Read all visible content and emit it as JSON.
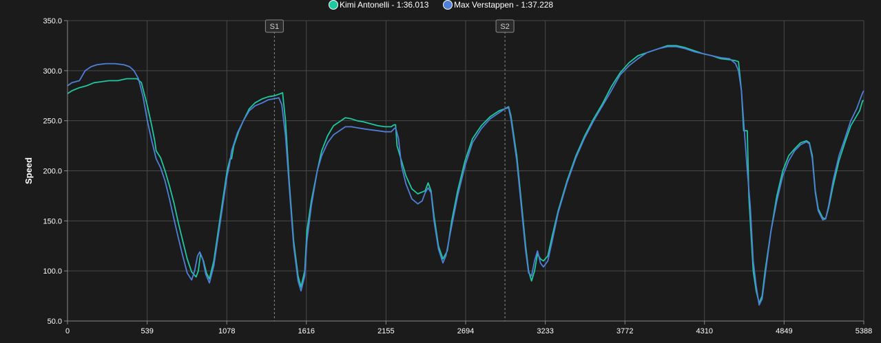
{
  "chart_data": {
    "type": "line",
    "title": "",
    "xlabel": "",
    "ylabel": "Speed",
    "xlim": [
      0,
      5388
    ],
    "ylim": [
      50,
      350
    ],
    "x_ticks": [
      "0",
      "539",
      "1078",
      "1616",
      "2155",
      "2694",
      "3233",
      "3772",
      "4310",
      "4849",
      "5388"
    ],
    "y_ticks": [
      "50.0",
      "100.0",
      "150.0",
      "200.0",
      "250.0",
      "300.0",
      "350.0"
    ],
    "grid": true,
    "legend_position": "top-center",
    "sector_markers": [
      {
        "label": "S1",
        "x": 1400
      },
      {
        "label": "S2",
        "x": 2960
      }
    ],
    "series": [
      {
        "name": "Kimi Antonelli - 1:36.013",
        "color": "#1ec9a0",
        "points": [
          [
            0,
            277
          ],
          [
            30,
            280
          ],
          [
            80,
            283
          ],
          [
            130,
            285
          ],
          [
            180,
            288
          ],
          [
            230,
            289
          ],
          [
            280,
            290
          ],
          [
            340,
            290
          ],
          [
            400,
            292
          ],
          [
            460,
            292
          ],
          [
            470,
            292
          ],
          [
            500,
            288
          ],
          [
            540,
            265
          ],
          [
            570,
            245
          ],
          [
            590,
            230
          ],
          [
            600,
            220
          ],
          [
            630,
            213
          ],
          [
            660,
            200
          ],
          [
            690,
            185
          ],
          [
            720,
            168
          ],
          [
            750,
            148
          ],
          [
            780,
            130
          ],
          [
            810,
            112
          ],
          [
            840,
            99
          ],
          [
            870,
            94
          ],
          [
            885,
            100
          ],
          [
            900,
            117
          ],
          [
            920,
            110
          ],
          [
            940,
            98
          ],
          [
            960,
            92
          ],
          [
            990,
            110
          ],
          [
            1020,
            140
          ],
          [
            1040,
            160
          ],
          [
            1060,
            180
          ],
          [
            1080,
            200
          ],
          [
            1100,
            212
          ],
          [
            1110,
            212
          ],
          [
            1125,
            225
          ],
          [
            1160,
            240
          ],
          [
            1190,
            250
          ],
          [
            1230,
            262
          ],
          [
            1270,
            268
          ],
          [
            1320,
            272
          ],
          [
            1360,
            274
          ],
          [
            1400,
            275
          ],
          [
            1440,
            277
          ],
          [
            1455,
            278
          ],
          [
            1475,
            250
          ],
          [
            1500,
            190
          ],
          [
            1530,
            130
          ],
          [
            1560,
            95
          ],
          [
            1580,
            84
          ],
          [
            1605,
            100
          ],
          [
            1620,
            140
          ],
          [
            1650,
            170
          ],
          [
            1690,
            200
          ],
          [
            1720,
            220
          ],
          [
            1760,
            235
          ],
          [
            1800,
            245
          ],
          [
            1840,
            249
          ],
          [
            1880,
            253
          ],
          [
            1920,
            252
          ],
          [
            1960,
            250
          ],
          [
            2000,
            249
          ],
          [
            2050,
            247
          ],
          [
            2100,
            245
          ],
          [
            2150,
            244
          ],
          [
            2190,
            244
          ],
          [
            2210,
            246
          ],
          [
            2220,
            246
          ],
          [
            2230,
            225
          ],
          [
            2260,
            210
          ],
          [
            2290,
            195
          ],
          [
            2330,
            182
          ],
          [
            2370,
            177
          ],
          [
            2420,
            180
          ],
          [
            2440,
            188
          ],
          [
            2460,
            180
          ],
          [
            2480,
            155
          ],
          [
            2510,
            125
          ],
          [
            2540,
            112
          ],
          [
            2570,
            120
          ],
          [
            2600,
            150
          ],
          [
            2640,
            180
          ],
          [
            2690,
            210
          ],
          [
            2740,
            232
          ],
          [
            2800,
            245
          ],
          [
            2860,
            254
          ],
          [
            2920,
            260
          ],
          [
            2960,
            262
          ],
          [
            2985,
            264
          ],
          [
            3000,
            255
          ],
          [
            3040,
            215
          ],
          [
            3070,
            170
          ],
          [
            3100,
            125
          ],
          [
            3120,
            100
          ],
          [
            3140,
            90
          ],
          [
            3160,
            100
          ],
          [
            3180,
            117
          ],
          [
            3200,
            112
          ],
          [
            3220,
            110
          ],
          [
            3250,
            115
          ],
          [
            3280,
            135
          ],
          [
            3320,
            160
          ],
          [
            3380,
            190
          ],
          [
            3440,
            215
          ],
          [
            3500,
            235
          ],
          [
            3560,
            252
          ],
          [
            3620,
            267
          ],
          [
            3680,
            284
          ],
          [
            3740,
            298
          ],
          [
            3800,
            308
          ],
          [
            3860,
            315
          ],
          [
            3940,
            319
          ],
          [
            4000,
            322
          ],
          [
            4060,
            325
          ],
          [
            4120,
            325
          ],
          [
            4180,
            323
          ],
          [
            4240,
            320
          ],
          [
            4300,
            317
          ],
          [
            4360,
            315
          ],
          [
            4420,
            312
          ],
          [
            4480,
            311
          ],
          [
            4520,
            310
          ],
          [
            4540,
            309
          ],
          [
            4560,
            280
          ],
          [
            4575,
            240
          ],
          [
            4600,
            240
          ],
          [
            4610,
            175
          ],
          [
            4640,
            100
          ],
          [
            4660,
            80
          ],
          [
            4680,
            68
          ],
          [
            4700,
            75
          ],
          [
            4720,
            100
          ],
          [
            4760,
            140
          ],
          [
            4800,
            175
          ],
          [
            4840,
            200
          ],
          [
            4880,
            215
          ],
          [
            4920,
            222
          ],
          [
            4960,
            228
          ],
          [
            5000,
            230
          ],
          [
            5020,
            228
          ],
          [
            5040,
            215
          ],
          [
            5060,
            180
          ],
          [
            5080,
            162
          ],
          [
            5110,
            153
          ],
          [
            5130,
            152
          ],
          [
            5150,
            163
          ],
          [
            5180,
            185
          ],
          [
            5220,
            210
          ],
          [
            5260,
            228
          ],
          [
            5300,
            245
          ],
          [
            5340,
            255
          ],
          [
            5360,
            260
          ],
          [
            5380,
            270
          ],
          [
            5388,
            270
          ]
        ]
      },
      {
        "name": "Max Verstappen - 1:37.228",
        "color": "#4f7fd8",
        "points": [
          [
            0,
            285
          ],
          [
            30,
            288
          ],
          [
            80,
            290
          ],
          [
            120,
            300
          ],
          [
            160,
            304
          ],
          [
            200,
            306
          ],
          [
            260,
            307
          ],
          [
            320,
            307
          ],
          [
            380,
            306
          ],
          [
            420,
            304
          ],
          [
            450,
            300
          ],
          [
            480,
            292
          ],
          [
            510,
            275
          ],
          [
            540,
            250
          ],
          [
            570,
            230
          ],
          [
            600,
            212
          ],
          [
            630,
            203
          ],
          [
            660,
            190
          ],
          [
            690,
            172
          ],
          [
            720,
            152
          ],
          [
            750,
            133
          ],
          [
            780,
            115
          ],
          [
            810,
            98
          ],
          [
            840,
            91
          ],
          [
            860,
            100
          ],
          [
            880,
            115
          ],
          [
            895,
            119
          ],
          [
            915,
            112
          ],
          [
            935,
            97
          ],
          [
            960,
            88
          ],
          [
            990,
            105
          ],
          [
            1020,
            135
          ],
          [
            1050,
            165
          ],
          [
            1080,
            195
          ],
          [
            1095,
            205
          ],
          [
            1110,
            220
          ],
          [
            1150,
            238
          ],
          [
            1190,
            250
          ],
          [
            1230,
            260
          ],
          [
            1270,
            265
          ],
          [
            1320,
            268
          ],
          [
            1360,
            271
          ],
          [
            1400,
            272
          ],
          [
            1430,
            273
          ],
          [
            1450,
            266
          ],
          [
            1475,
            235
          ],
          [
            1500,
            185
          ],
          [
            1530,
            125
          ],
          [
            1560,
            90
          ],
          [
            1580,
            80
          ],
          [
            1605,
            95
          ],
          [
            1620,
            130
          ],
          [
            1650,
            165
          ],
          [
            1690,
            200
          ],
          [
            1720,
            215
          ],
          [
            1760,
            228
          ],
          [
            1800,
            236
          ],
          [
            1840,
            240
          ],
          [
            1880,
            244
          ],
          [
            1920,
            244
          ],
          [
            1960,
            243
          ],
          [
            2000,
            242
          ],
          [
            2050,
            241
          ],
          [
            2100,
            240
          ],
          [
            2150,
            239
          ],
          [
            2190,
            239
          ],
          [
            2210,
            242
          ],
          [
            2220,
            243
          ],
          [
            2240,
            232
          ],
          [
            2260,
            205
          ],
          [
            2290,
            187
          ],
          [
            2330,
            172
          ],
          [
            2370,
            167
          ],
          [
            2400,
            170
          ],
          [
            2420,
            178
          ],
          [
            2440,
            183
          ],
          [
            2460,
            178
          ],
          [
            2480,
            150
          ],
          [
            2510,
            122
          ],
          [
            2540,
            108
          ],
          [
            2560,
            115
          ],
          [
            2600,
            145
          ],
          [
            2640,
            175
          ],
          [
            2690,
            205
          ],
          [
            2740,
            228
          ],
          [
            2800,
            242
          ],
          [
            2860,
            252
          ],
          [
            2920,
            258
          ],
          [
            2960,
            262
          ],
          [
            2985,
            263
          ],
          [
            3000,
            252
          ],
          [
            3040,
            210
          ],
          [
            3070,
            165
          ],
          [
            3100,
            120
          ],
          [
            3120,
            98
          ],
          [
            3140,
            95
          ],
          [
            3160,
            110
          ],
          [
            3180,
            120
          ],
          [
            3200,
            108
          ],
          [
            3220,
            104
          ],
          [
            3250,
            110
          ],
          [
            3280,
            130
          ],
          [
            3320,
            158
          ],
          [
            3380,
            188
          ],
          [
            3440,
            213
          ],
          [
            3500,
            233
          ],
          [
            3560,
            250
          ],
          [
            3620,
            265
          ],
          [
            3680,
            280
          ],
          [
            3740,
            296
          ],
          [
            3800,
            305
          ],
          [
            3860,
            312
          ],
          [
            3920,
            318
          ],
          [
            4000,
            322
          ],
          [
            4060,
            324
          ],
          [
            4120,
            324
          ],
          [
            4180,
            322
          ],
          [
            4240,
            319
          ],
          [
            4300,
            317
          ],
          [
            4360,
            315
          ],
          [
            4420,
            313
          ],
          [
            4480,
            312
          ],
          [
            4520,
            307
          ],
          [
            4540,
            300
          ],
          [
            4560,
            280
          ],
          [
            4580,
            240
          ],
          [
            4600,
            200
          ],
          [
            4620,
            165
          ],
          [
            4640,
            110
          ],
          [
            4660,
            85
          ],
          [
            4680,
            66
          ],
          [
            4700,
            72
          ],
          [
            4720,
            95
          ],
          [
            4760,
            140
          ],
          [
            4800,
            170
          ],
          [
            4840,
            195
          ],
          [
            4880,
            210
          ],
          [
            4920,
            220
          ],
          [
            4960,
            226
          ],
          [
            5000,
            229
          ],
          [
            5020,
            227
          ],
          [
            5040,
            212
          ],
          [
            5060,
            178
          ],
          [
            5080,
            160
          ],
          [
            5110,
            151
          ],
          [
            5130,
            152
          ],
          [
            5150,
            165
          ],
          [
            5180,
            190
          ],
          [
            5220,
            215
          ],
          [
            5260,
            232
          ],
          [
            5300,
            250
          ],
          [
            5340,
            262
          ],
          [
            5360,
            270
          ],
          [
            5380,
            278
          ],
          [
            5388,
            280
          ]
        ]
      }
    ]
  }
}
